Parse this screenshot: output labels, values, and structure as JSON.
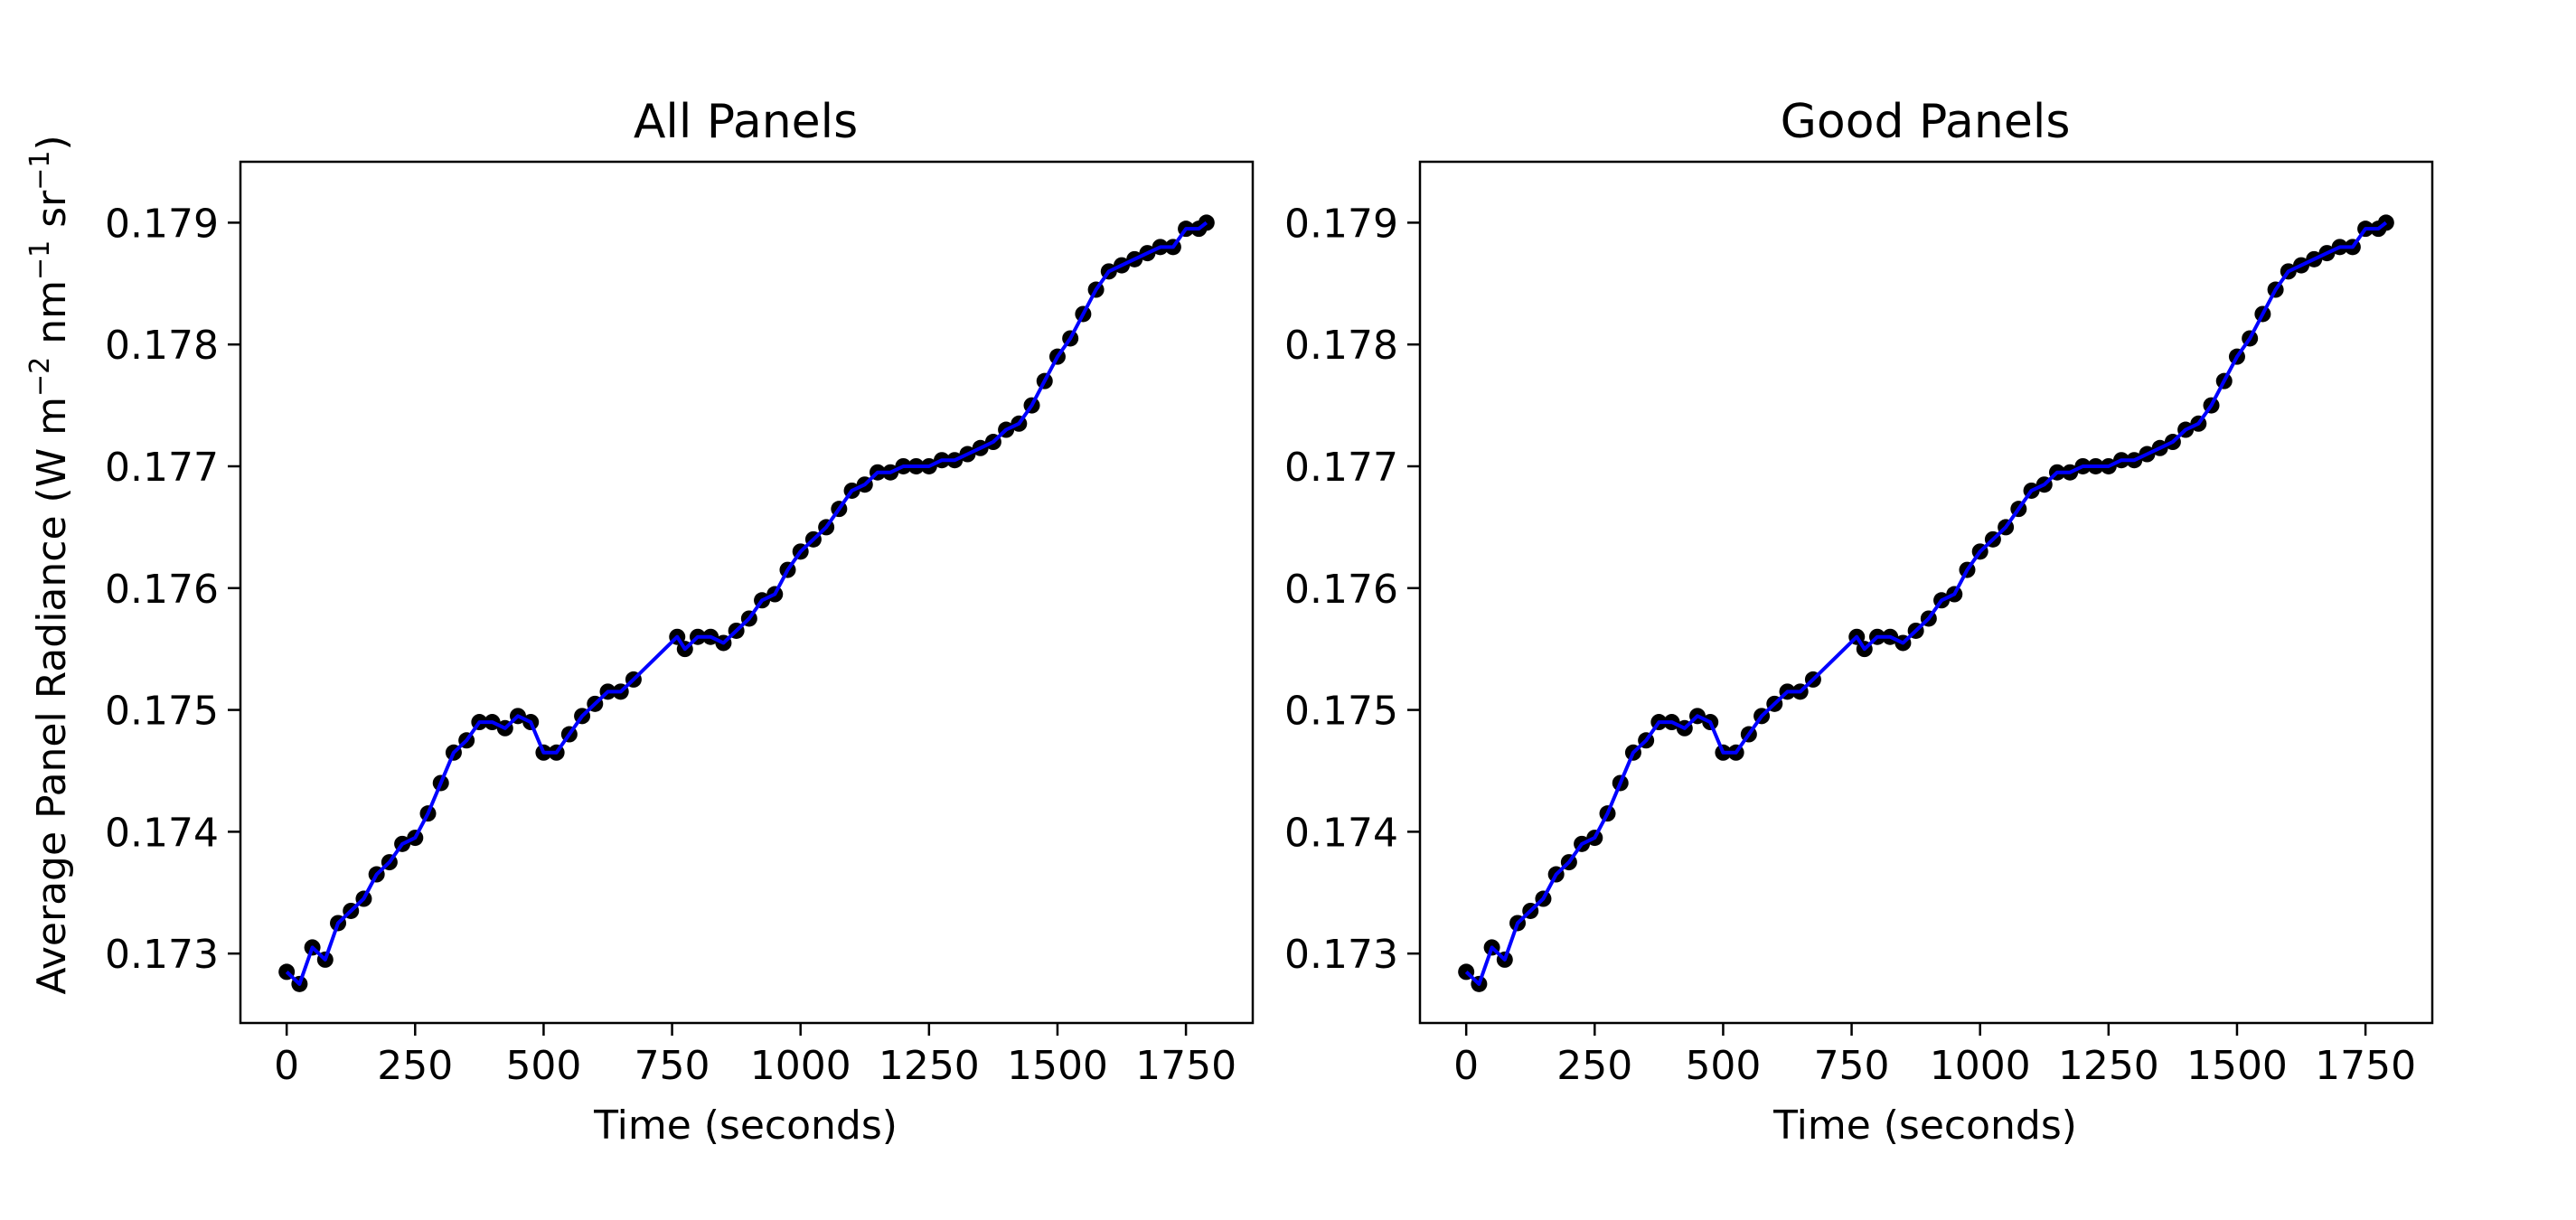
{
  "figure": {
    "ylabel_main": "Average Panel Radiance (W m",
    "ylabel_exp1": "−2",
    "ylabel_mid1": " nm",
    "ylabel_exp2": "−1",
    "ylabel_mid2": " sr",
    "ylabel_exp3": "−1",
    "ylabel_end": ")"
  },
  "colors": {
    "line": "#0000ff",
    "marker": "#000000",
    "axes": "#000000",
    "background": "#ffffff"
  },
  "chart_data": [
    {
      "type": "line",
      "title": "All Panels",
      "xlabel": "Time (seconds)",
      "ylabel": "Average Panel Radiance (W m−2 nm−1 sr−1)",
      "xlim": [
        -90,
        1880
      ],
      "ylim": [
        0.17243,
        0.1795
      ],
      "xticks": [
        0,
        250,
        500,
        750,
        1000,
        1250,
        1500,
        1750
      ],
      "xtick_labels": [
        "0",
        "250",
        "500",
        "750",
        "1000",
        "1250",
        "1500",
        "1750"
      ],
      "yticks": [
        0.173,
        0.174,
        0.175,
        0.176,
        0.177,
        0.178,
        0.179
      ],
      "ytick_labels": [
        "0.173",
        "0.174",
        "0.175",
        "0.176",
        "0.177",
        "0.178",
        "0.179"
      ],
      "markers": true,
      "series": [
        {
          "name": "Average Panel Radiance",
          "x": [
            0,
            25,
            50,
            75,
            100,
            125,
            150,
            175,
            200,
            225,
            250,
            275,
            300,
            325,
            350,
            375,
            400,
            425,
            450,
            475,
            500,
            525,
            550,
            575,
            600,
            625,
            650,
            675,
            760,
            775,
            800,
            825,
            850,
            875,
            900,
            925,
            950,
            975,
            1000,
            1025,
            1050,
            1075,
            1100,
            1125,
            1150,
            1175,
            1200,
            1225,
            1250,
            1275,
            1300,
            1325,
            1350,
            1375,
            1400,
            1425,
            1450,
            1475,
            1500,
            1525,
            1550,
            1575,
            1600,
            1625,
            1650,
            1675,
            1700,
            1725,
            1750,
            1775,
            1790
          ],
          "y": [
            0.17285,
            0.17275,
            0.17305,
            0.17295,
            0.17325,
            0.17335,
            0.17345,
            0.17365,
            0.17375,
            0.1739,
            0.17395,
            0.17415,
            0.1744,
            0.17465,
            0.17475,
            0.1749,
            0.1749,
            0.17485,
            0.17495,
            0.1749,
            0.17465,
            0.17465,
            0.1748,
            0.17495,
            0.17505,
            0.17515,
            0.17515,
            0.17525,
            0.1756,
            0.1755,
            0.1756,
            0.1756,
            0.17555,
            0.17565,
            0.17575,
            0.1759,
            0.17595,
            0.17615,
            0.1763,
            0.1764,
            0.1765,
            0.17665,
            0.1768,
            0.17685,
            0.17695,
            0.17695,
            0.177,
            0.177,
            0.177,
            0.17705,
            0.17705,
            0.1771,
            0.17715,
            0.1772,
            0.1773,
            0.17735,
            0.1775,
            0.1777,
            0.1779,
            0.17805,
            0.17825,
            0.17845,
            0.1786,
            0.17865,
            0.1787,
            0.17875,
            0.1788,
            0.1788,
            0.17895,
            0.17895,
            0.179
          ]
        }
      ]
    },
    {
      "type": "line",
      "title": "Good Panels",
      "xlabel": "Time (seconds)",
      "ylabel": "",
      "xlim": [
        -90,
        1880
      ],
      "ylim": [
        0.17243,
        0.1795
      ],
      "xticks": [
        0,
        250,
        500,
        750,
        1000,
        1250,
        1500,
        1750
      ],
      "xtick_labels": [
        "0",
        "250",
        "500",
        "750",
        "1000",
        "1250",
        "1500",
        "1750"
      ],
      "yticks": [
        0.173,
        0.174,
        0.175,
        0.176,
        0.177,
        0.178,
        0.179
      ],
      "ytick_labels": [
        "0.173",
        "0.174",
        "0.175",
        "0.176",
        "0.177",
        "0.178",
        "0.179"
      ],
      "markers": true,
      "series": [
        {
          "name": "Average Panel Radiance",
          "x": [
            0,
            25,
            50,
            75,
            100,
            125,
            150,
            175,
            200,
            225,
            250,
            275,
            300,
            325,
            350,
            375,
            400,
            425,
            450,
            475,
            500,
            525,
            550,
            575,
            600,
            625,
            650,
            675,
            760,
            775,
            800,
            825,
            850,
            875,
            900,
            925,
            950,
            975,
            1000,
            1025,
            1050,
            1075,
            1100,
            1125,
            1150,
            1175,
            1200,
            1225,
            1250,
            1275,
            1300,
            1325,
            1350,
            1375,
            1400,
            1425,
            1450,
            1475,
            1500,
            1525,
            1550,
            1575,
            1600,
            1625,
            1650,
            1675,
            1700,
            1725,
            1750,
            1775,
            1790
          ],
          "y": [
            0.17285,
            0.17275,
            0.17305,
            0.17295,
            0.17325,
            0.17335,
            0.17345,
            0.17365,
            0.17375,
            0.1739,
            0.17395,
            0.17415,
            0.1744,
            0.17465,
            0.17475,
            0.1749,
            0.1749,
            0.17485,
            0.17495,
            0.1749,
            0.17465,
            0.17465,
            0.1748,
            0.17495,
            0.17505,
            0.17515,
            0.17515,
            0.17525,
            0.1756,
            0.1755,
            0.1756,
            0.1756,
            0.17555,
            0.17565,
            0.17575,
            0.1759,
            0.17595,
            0.17615,
            0.1763,
            0.1764,
            0.1765,
            0.17665,
            0.1768,
            0.17685,
            0.17695,
            0.17695,
            0.177,
            0.177,
            0.177,
            0.17705,
            0.17705,
            0.1771,
            0.17715,
            0.1772,
            0.1773,
            0.17735,
            0.1775,
            0.1777,
            0.1779,
            0.17805,
            0.17825,
            0.17845,
            0.1786,
            0.17865,
            0.1787,
            0.17875,
            0.1788,
            0.1788,
            0.17895,
            0.17895,
            0.179
          ]
        }
      ]
    }
  ]
}
